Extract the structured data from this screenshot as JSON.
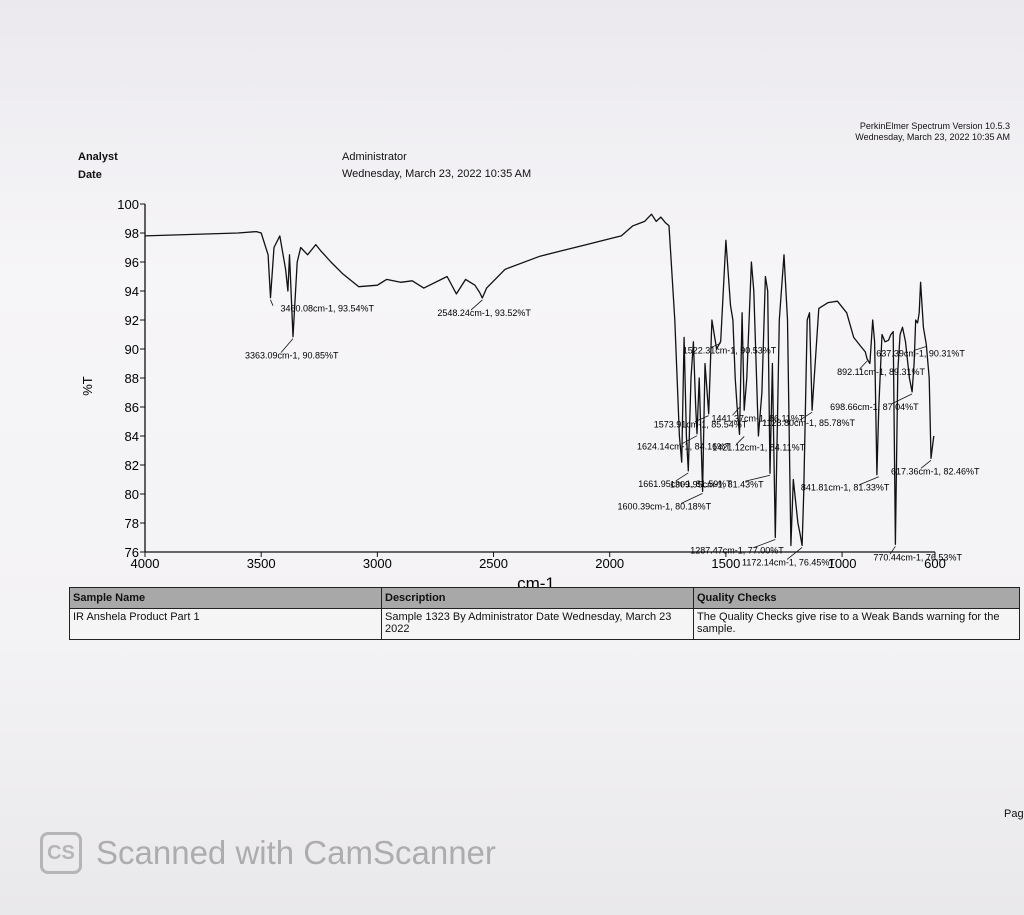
{
  "header": {
    "analyst_label": "Analyst",
    "date_label": "Date",
    "analyst_value": "Administrator",
    "date_value": "Wednesday, March 23, 2022 10:35 AM",
    "software_version": "PerkinElmer Spectrum Version 10.5.3",
    "software_date": "Wednesday, March 23, 2022 10:35 AM"
  },
  "chart_data": {
    "type": "line",
    "xlabel": "cm-1",
    "ylabel": "%T",
    "xlim": [
      4000,
      600
    ],
    "ylim": [
      76,
      100
    ],
    "x_reversed": true,
    "x_ticks": [
      4000,
      3500,
      3000,
      2500,
      2000,
      1500,
      1000,
      600
    ],
    "y_ticks": [
      76,
      78,
      80,
      82,
      84,
      86,
      88,
      90,
      92,
      94,
      96,
      98,
      100
    ],
    "grid": false,
    "series": [
      {
        "x": [
          4000,
          3600,
          3520,
          3500,
          3470,
          3460.08,
          3445,
          3420,
          3395,
          3385,
          3378,
          3363.09,
          3345,
          3330,
          3300,
          3265,
          3245,
          3200,
          3150,
          3080,
          3000,
          2960,
          2900,
          2850,
          2800,
          2700,
          2660,
          2620,
          2580,
          2560,
          2548.24,
          2530,
          2450,
          2300,
          2200,
          2100,
          2000,
          1950,
          1900,
          1850,
          1820,
          1800,
          1780,
          1760,
          1745,
          1720,
          1700,
          1690,
          1680,
          1670,
          1661.95,
          1650,
          1640,
          1630,
          1624.14,
          1615,
          1600.39,
          1590,
          1573.91,
          1560,
          1540,
          1522.31,
          1500,
          1480,
          1470,
          1460,
          1452,
          1441.37,
          1430,
          1421.12,
          1410,
          1390,
          1380,
          1360,
          1345,
          1330,
          1320,
          1309.95,
          1300,
          1287.47,
          1270,
          1250,
          1235,
          1220,
          1210,
          1190,
          1180,
          1172.14,
          1165,
          1150,
          1140,
          1128.8,
          1100,
          1060,
          1020,
          980,
          950,
          920,
          900,
          892.11,
          880,
          868,
          860,
          850,
          841.81,
          828,
          815,
          800,
          790,
          780,
          770.44,
          760,
          750,
          740,
          727,
          710,
          698.66,
          690,
          683,
          675,
          668,
          662,
          650,
          637.39,
          625,
          617.36,
          605
        ],
        "values": [
          97.8,
          98.0,
          98.1,
          98.0,
          96.5,
          93.54,
          97.0,
          97.8,
          95.5,
          94.0,
          96.5,
          90.85,
          96.0,
          97.0,
          96.5,
          97.2,
          96.8,
          96.0,
          95.2,
          94.3,
          94.4,
          94.8,
          94.6,
          94.7,
          94.2,
          95.0,
          93.8,
          94.8,
          94.4,
          93.9,
          93.52,
          94.2,
          95.5,
          96.4,
          96.8,
          97.2,
          97.6,
          97.8,
          98.5,
          98.8,
          99.3,
          98.8,
          99.1,
          98.7,
          98.5,
          92.0,
          84.0,
          82.2,
          90.8,
          84.0,
          81.59,
          88.0,
          90.5,
          86.0,
          84.16,
          88.0,
          80.18,
          89.0,
          85.54,
          92.0,
          90.0,
          90.53,
          97.5,
          93.0,
          92.0,
          88.0,
          86.11,
          84.11,
          92.5,
          85.78,
          88.0,
          96.0,
          94.0,
          84.0,
          87.0,
          95.0,
          94.0,
          81.43,
          89.0,
          77.0,
          92.0,
          96.5,
          92.0,
          76.45,
          81.0,
          78.0,
          77.2,
          76.45,
          80.0,
          92.0,
          92.5,
          85.78,
          92.8,
          93.2,
          93.3,
          92.5,
          90.8,
          90.2,
          89.8,
          89.31,
          89.0,
          92.0,
          90.5,
          81.33,
          86.0,
          91.0,
          90.5,
          90.6,
          91.0,
          91.2,
          76.53,
          88.5,
          91.0,
          91.5,
          90.5,
          88.0,
          87.04,
          89.0,
          92.0,
          91.8,
          92.5,
          94.6,
          91.5,
          90.31,
          88.0,
          82.46,
          84.0
        ]
      }
    ],
    "peak_labels": [
      {
        "x": 3460.08,
        "y": 93.54,
        "text": "3460.08cm-1, 93.54%T"
      },
      {
        "x": 3363.09,
        "y": 90.85,
        "text": "3363.09cm-1, 90.85%T"
      },
      {
        "x": 2548.24,
        "y": 93.52,
        "text": "2548.24cm-1, 93.52%T"
      },
      {
        "x": 1522.31,
        "y": 90.53,
        "text": "1522.31cm-1, 90.53%T"
      },
      {
        "x": 892.11,
        "y": 89.31,
        "text": "892.11cm-1, 89.31%T"
      },
      {
        "x": 637.39,
        "y": 90.31,
        "text": "637.39cm-1, 90.31%T"
      },
      {
        "x": 1441.37,
        "y": 86.11,
        "text": "1441.37cm-1, 86.11%T"
      },
      {
        "x": 1573.91,
        "y": 85.54,
        "text": "1573.91cm-1, 85.54%T"
      },
      {
        "x": 1128.8,
        "y": 85.78,
        "text": "1128.80cm-1, 85.78%T"
      },
      {
        "x": 698.66,
        "y": 87.04,
        "text": "698.66cm-1, 87.04%T"
      },
      {
        "x": 1421.12,
        "y": 84.11,
        "text": "1421.12cm-1, 84.11%T"
      },
      {
        "x": 1624.14,
        "y": 84.16,
        "text": "1624.14cm-1, 84.16%T"
      },
      {
        "x": 617.36,
        "y": 82.46,
        "text": "617.36cm-1, 82.46%T"
      },
      {
        "x": 1661.95,
        "y": 81.59,
        "text": "1661.95cm-1, 81.59%T"
      },
      {
        "x": 1309.95,
        "y": 81.43,
        "text": "1309.95cm-1, 81.43%T"
      },
      {
        "x": 841.81,
        "y": 81.33,
        "text": "841.81cm-1, 81.33%T"
      },
      {
        "x": 1600.39,
        "y": 80.18,
        "text": "1600.39cm-1, 80.18%T"
      },
      {
        "x": 1287.47,
        "y": 77.0,
        "text": "1287.47cm-1, 77.00%T"
      },
      {
        "x": 770.44,
        "y": 76.53,
        "text": "770.44cm-1, 76.53%T"
      },
      {
        "x": 1172.14,
        "y": 76.45,
        "text": "1172.14cm-1, 76.45%T"
      }
    ]
  },
  "table": {
    "headers": [
      "Sample Name",
      "Description",
      "Quality Checks"
    ],
    "row": [
      "IR Anshela Product Part 1",
      "Sample 1323 By Administrator Date Wednesday, March 23 2022",
      "The Quality Checks give rise to a Weak Bands warning for the sample."
    ]
  },
  "footer": {
    "page_fragment": "Pag",
    "watermark_logo": "CS",
    "watermark_text": "Scanned with CamScanner"
  }
}
